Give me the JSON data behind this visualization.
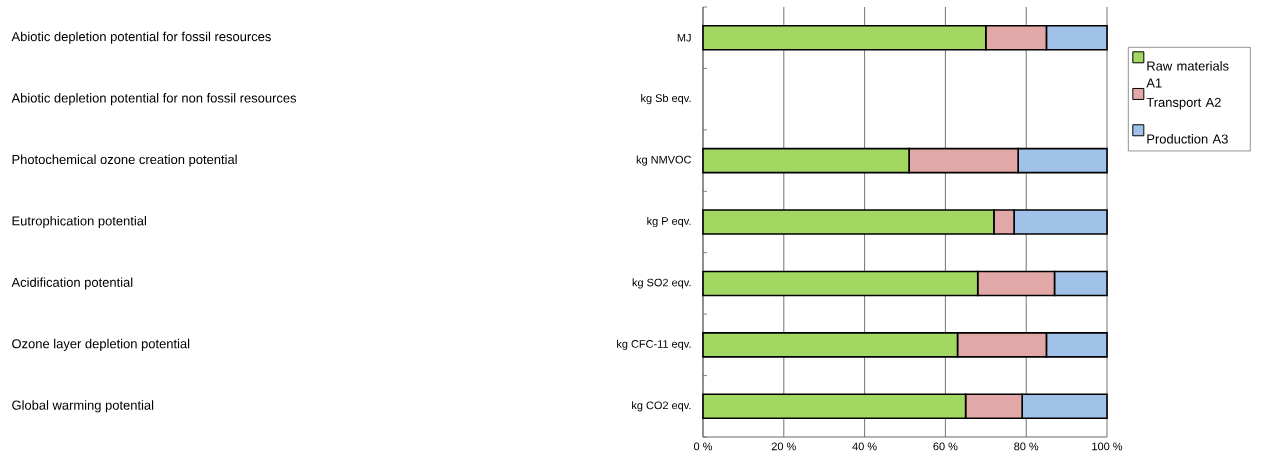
{
  "chart_data": {
    "type": "bar",
    "orientation": "horizontal",
    "stacked": true,
    "categories": [
      "MJ",
      "kg Sb eqv.",
      "kg NMVOC",
      "kg P eqv.",
      "kg SO2 eqv.",
      "kg CFC-11 eqv.",
      "kg CO2 eqv."
    ],
    "series": [
      {
        "name": "Raw materials A1",
        "color": "#a2d762",
        "values": [
          70,
          null,
          51,
          72,
          68,
          63,
          65
        ]
      },
      {
        "name": "Transport A2",
        "color": "#e2a8a7",
        "values": [
          15,
          null,
          27,
          5,
          19,
          22,
          14
        ]
      },
      {
        "name": "Production A3",
        "color": "#a0c1e8",
        "values": [
          15,
          null,
          22,
          23,
          13,
          15,
          21
        ]
      }
    ],
    "xlim": [
      0,
      100
    ],
    "xticks": [
      {
        "value": 0,
        "label": "0 %"
      },
      {
        "value": 20,
        "label": "20 %"
      },
      {
        "value": 40,
        "label": "40 %"
      },
      {
        "value": 60,
        "label": "60 %"
      },
      {
        "value": 80,
        "label": "80 %"
      },
      {
        "value": 100,
        "label": "100 %"
      }
    ],
    "grid": "x",
    "legend": "right",
    "annotations": [
      "Abiotic depletion potential for fossil resources",
      "Abiotic depletion potential for non fossil resources",
      "Photochemical ozone creation potential",
      "Eutrophication potential",
      "Acidification potential",
      "Ozone layer depletion potential",
      "Global warming potential"
    ]
  }
}
